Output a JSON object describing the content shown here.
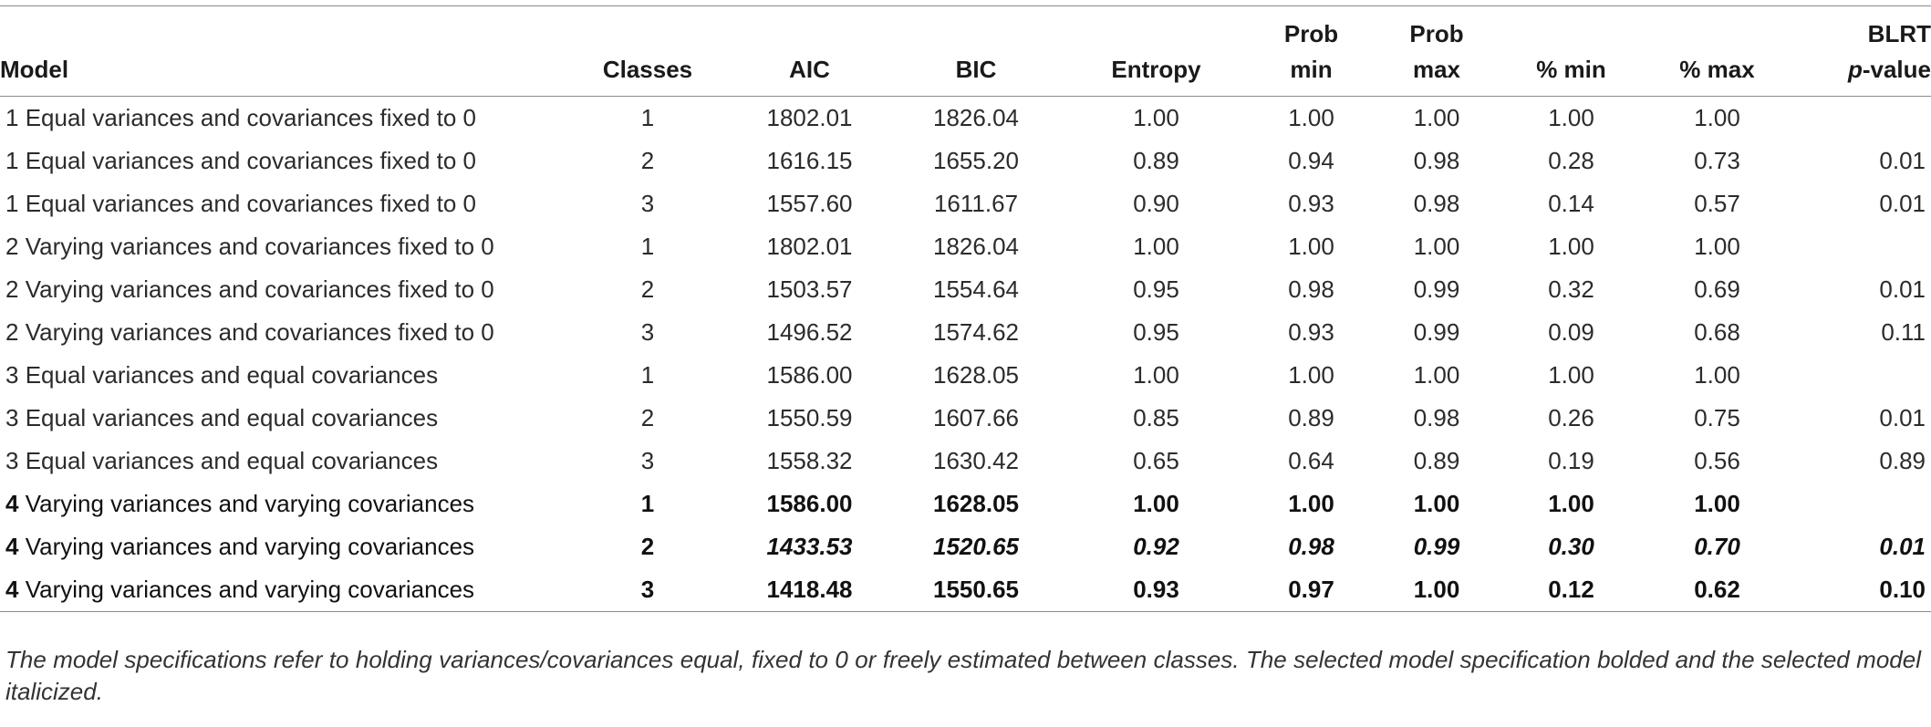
{
  "headers": {
    "model": "Model",
    "classes": "Classes",
    "aic": "AIC",
    "bic": "BIC",
    "entropy": "Entropy",
    "prob_min_top": "Prob",
    "prob_min_bottom": "min",
    "prob_max_top": "Prob",
    "prob_max_bottom": "max",
    "pct_min": "% min",
    "pct_max": "% max",
    "blrt_top": "BLRT",
    "blrt_bottom_italic": "p",
    "blrt_bottom_rest": "-value"
  },
  "rows": [
    {
      "model_num": "1",
      "model_text": "Equal variances and covariances fixed to 0",
      "classes": "1",
      "aic": "1802.01",
      "bic": "1826.04",
      "entropy": "1.00",
      "prob_min": "1.00",
      "prob_max": "1.00",
      "pct_min": "1.00",
      "pct_max": "1.00",
      "blrt": ""
    },
    {
      "model_num": "1",
      "model_text": "Equal variances and covariances fixed to 0",
      "classes": "2",
      "aic": "1616.15",
      "bic": "1655.20",
      "entropy": "0.89",
      "prob_min": "0.94",
      "prob_max": "0.98",
      "pct_min": "0.28",
      "pct_max": "0.73",
      "blrt": "0.01"
    },
    {
      "model_num": "1",
      "model_text": "Equal variances and covariances fixed to 0",
      "classes": "3",
      "aic": "1557.60",
      "bic": "1611.67",
      "entropy": "0.90",
      "prob_min": "0.93",
      "prob_max": "0.98",
      "pct_min": "0.14",
      "pct_max": "0.57",
      "blrt": "0.01"
    },
    {
      "model_num": "2",
      "model_text": "Varying variances and covariances fixed to 0",
      "classes": "1",
      "aic": "1802.01",
      "bic": "1826.04",
      "entropy": "1.00",
      "prob_min": "1.00",
      "prob_max": "1.00",
      "pct_min": "1.00",
      "pct_max": "1.00",
      "blrt": ""
    },
    {
      "model_num": "2",
      "model_text": "Varying variances and covariances fixed to 0",
      "classes": "2",
      "aic": "1503.57",
      "bic": "1554.64",
      "entropy": "0.95",
      "prob_min": "0.98",
      "prob_max": "0.99",
      "pct_min": "0.32",
      "pct_max": "0.69",
      "blrt": "0.01"
    },
    {
      "model_num": "2",
      "model_text": "Varying variances and covariances fixed to 0",
      "classes": "3",
      "aic": "1496.52",
      "bic": "1574.62",
      "entropy": "0.95",
      "prob_min": "0.93",
      "prob_max": "0.99",
      "pct_min": "0.09",
      "pct_max": "0.68",
      "blrt": "0.11"
    },
    {
      "model_num": "3",
      "model_text": "Equal variances and equal covariances",
      "classes": "1",
      "aic": "1586.00",
      "bic": "1628.05",
      "entropy": "1.00",
      "prob_min": "1.00",
      "prob_max": "1.00",
      "pct_min": "1.00",
      "pct_max": "1.00",
      "blrt": ""
    },
    {
      "model_num": "3",
      "model_text": "Equal variances and equal covariances",
      "classes": "2",
      "aic": "1550.59",
      "bic": "1607.66",
      "entropy": "0.85",
      "prob_min": "0.89",
      "prob_max": "0.98",
      "pct_min": "0.26",
      "pct_max": "0.75",
      "blrt": "0.01"
    },
    {
      "model_num": "3",
      "model_text": "Equal variances and equal covariances",
      "classes": "3",
      "aic": "1558.32",
      "bic": "1630.42",
      "entropy": "0.65",
      "prob_min": "0.64",
      "prob_max": "0.89",
      "pct_min": "0.19",
      "pct_max": "0.56",
      "blrt": "0.89"
    },
    {
      "model_num": "4",
      "model_text": "Varying variances and varying covariances",
      "classes": "1",
      "aic": "1586.00",
      "bic": "1628.05",
      "entropy": "1.00",
      "prob_min": "1.00",
      "prob_max": "1.00",
      "pct_min": "1.00",
      "pct_max": "1.00",
      "blrt": ""
    },
    {
      "model_num": "4",
      "model_text": "Varying variances and varying covariances",
      "classes": "2",
      "aic": "1433.53",
      "bic": "1520.65",
      "entropy": "0.92",
      "prob_min": "0.98",
      "prob_max": "0.99",
      "pct_min": "0.30",
      "pct_max": "0.70",
      "blrt": "0.01"
    },
    {
      "model_num": "4",
      "model_text": "Varying variances and varying covariances",
      "classes": "3",
      "aic": "1418.48",
      "bic": "1550.65",
      "entropy": "0.93",
      "prob_min": "0.97",
      "prob_max": "1.00",
      "pct_min": "0.12",
      "pct_max": "0.62",
      "blrt": "0.10"
    }
  ],
  "footnote": "The model specifications refer to holding variances/covariances equal, fixed to 0 or freely estimated between classes. The selected model specification bolded and the selected model italicized."
}
